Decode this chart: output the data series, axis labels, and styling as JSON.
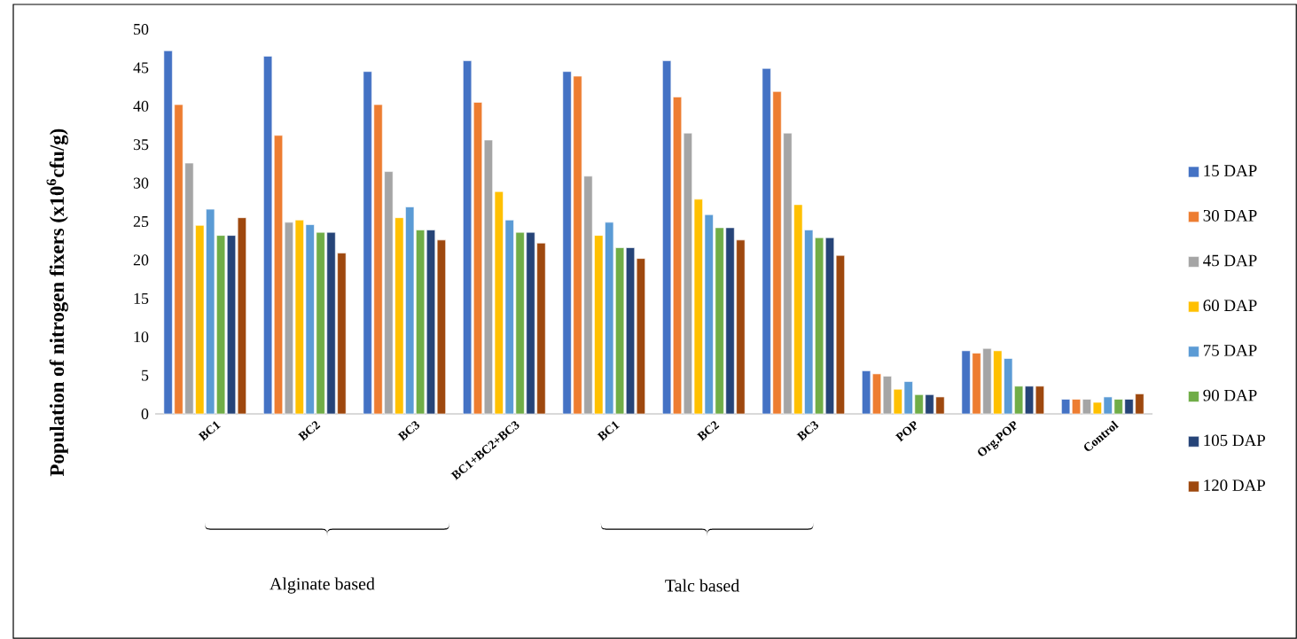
{
  "chart_data": {
    "type": "bar",
    "ylabel": "Population of nitrogen fixers (x10$^{6}$cfu/g)",
    "categories": [
      "BC1",
      "BC2",
      "BC3",
      "BC1+BC2+BC3",
      "BC1",
      "BC2",
      "BC3",
      "POP",
      "Org.POP",
      "Control"
    ],
    "series": [
      {
        "name": "15 DAP",
        "color": "#4472c4",
        "values": [
          47.2,
          46.5,
          44.5,
          45.9,
          44.5,
          45.9,
          44.9,
          5.6,
          8.2,
          1.9
        ]
      },
      {
        "name": "30 DAP",
        "color": "#ed7d31",
        "values": [
          40.2,
          36.2,
          40.2,
          40.5,
          43.9,
          41.2,
          41.9,
          5.2,
          7.9,
          1.9
        ]
      },
      {
        "name": "45 DAP",
        "color": "#a5a5a5",
        "values": [
          32.6,
          24.9,
          31.5,
          35.6,
          30.9,
          36.5,
          36.5,
          4.9,
          8.5,
          1.9
        ]
      },
      {
        "name": "60 DAP",
        "color": "#ffc000",
        "values": [
          24.5,
          25.2,
          25.5,
          28.9,
          23.2,
          27.9,
          27.2,
          3.2,
          8.2,
          1.5
        ]
      },
      {
        "name": "75 DAP",
        "color": "#5b9bd5",
        "values": [
          26.6,
          24.6,
          26.9,
          25.2,
          24.9,
          25.9,
          23.9,
          4.2,
          7.2,
          2.2
        ]
      },
      {
        "name": "90 DAP",
        "color": "#70ad47",
        "values": [
          23.2,
          23.6,
          23.9,
          23.6,
          21.6,
          24.2,
          22.9,
          2.5,
          3.6,
          1.9
        ]
      },
      {
        "name": "105 DAP",
        "color": "#264478",
        "values": [
          23.2,
          23.6,
          23.9,
          23.6,
          21.6,
          24.2,
          22.9,
          2.5,
          3.6,
          1.9
        ]
      },
      {
        "name": "120 DAP",
        "color": "#9e480e",
        "values": [
          25.5,
          20.9,
          22.6,
          22.2,
          20.2,
          22.6,
          20.6,
          2.2,
          3.6,
          2.6
        ]
      }
    ],
    "ylim": [
      0,
      50
    ],
    "yticks": [
      0,
      5,
      10,
      15,
      20,
      25,
      30,
      35,
      40,
      45,
      50
    ],
    "legend": "right",
    "annotations": [
      "Alginate based",
      "Talc based"
    ]
  }
}
